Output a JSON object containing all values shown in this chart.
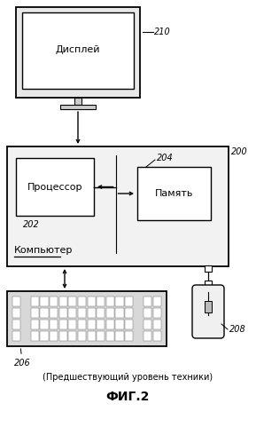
{
  "title_sub": "(Предшествующий уровень техники)",
  "title_main": "ФИГ.2",
  "bg_color": "#ffffff",
  "line_color": "#000000",
  "box_edge": "#000000",
  "label_display": "Дисплей",
  "label_processor": "Процессор",
  "label_memory": "Память",
  "label_computer": "Компьютер",
  "ref_210": "210",
  "ref_200": "200",
  "ref_202": "202",
  "ref_204": "204",
  "ref_206": "206",
  "ref_208": "208"
}
